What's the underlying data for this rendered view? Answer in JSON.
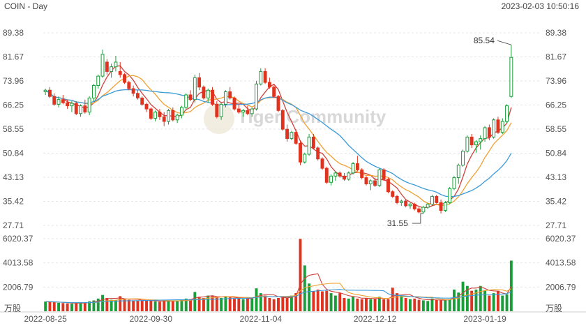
{
  "header": {
    "title": "COIN - Day",
    "timestamp": "2023-02-03 10:50:16"
  },
  "watermark": "Tiger Community",
  "colors": {
    "up": "#1a9e3a",
    "down": "#e0331f",
    "ma5": "#d0403a",
    "ma10": "#f0a030",
    "ma20": "#3a9ad8",
    "vol_ma_a": "#d0403a",
    "vol_ma_b": "#f0a030",
    "vol_ma_c": "#3a9ad8",
    "grid": "#e6e6e6"
  },
  "chart_data": {
    "type": "candlestick",
    "price_axis": {
      "ticks": [
        "89.38",
        "81.67",
        "73.96",
        "66.25",
        "58.55",
        "50.84",
        "43.13",
        "35.42",
        "27.71"
      ],
      "range": [
        27.71,
        89.38
      ]
    },
    "volume_axis": {
      "ticks": [
        "6020.37",
        "4013.58",
        "2006.79"
      ],
      "unit": "万股",
      "range": [
        0,
        6020.37
      ]
    },
    "x_ticks": [
      "2022-08-25",
      "2022-09-30",
      "2022-11-04",
      "2022-12-12",
      "2023-01-19"
    ],
    "annotations": {
      "high": "85.54",
      "low": "31.55"
    },
    "candles": [
      [
        70.5,
        71.5,
        69.5,
        71.0
      ],
      [
        71.0,
        72.0,
        68.5,
        69.0
      ],
      [
        69.0,
        70.0,
        66.0,
        66.5
      ],
      [
        66.5,
        69.0,
        65.5,
        68.0
      ],
      [
        68.0,
        69.5,
        66.5,
        67.0
      ],
      [
        67.0,
        68.0,
        65.0,
        66.0
      ],
      [
        66.0,
        67.5,
        64.0,
        66.8
      ],
      [
        66.8,
        67.5,
        63.0,
        63.5
      ],
      [
        63.5,
        66.5,
        62.5,
        66.0
      ],
      [
        66.0,
        68.0,
        63.5,
        64.0
      ],
      [
        64.0,
        69.0,
        63.0,
        68.5
      ],
      [
        68.5,
        73.0,
        67.5,
        72.5
      ],
      [
        72.5,
        76.0,
        71.5,
        75.5
      ],
      [
        75.5,
        84.0,
        75.0,
        82.5
      ],
      [
        80.0,
        81.0,
        76.0,
        77.0
      ],
      [
        77.0,
        79.5,
        75.0,
        78.5
      ],
      [
        78.5,
        82.0,
        77.0,
        80.0
      ],
      [
        77.0,
        80.0,
        75.0,
        76.0
      ],
      [
        76.0,
        76.5,
        73.0,
        73.5
      ],
      [
        73.5,
        74.0,
        71.0,
        71.5
      ],
      [
        71.5,
        72.5,
        69.0,
        70.0
      ],
      [
        70.0,
        71.0,
        68.0,
        68.5
      ],
      [
        68.5,
        69.0,
        66.0,
        66.5
      ],
      [
        66.5,
        67.0,
        64.0,
        65.0
      ],
      [
        65.0,
        65.5,
        61.5,
        62.0
      ],
      [
        62.0,
        64.5,
        61.0,
        64.0
      ],
      [
        64.0,
        65.0,
        61.5,
        62.5
      ],
      [
        62.5,
        64.0,
        59.5,
        61.0
      ],
      [
        61.0,
        65.0,
        60.0,
        64.5
      ],
      [
        64.5,
        65.5,
        61.0,
        61.5
      ],
      [
        61.5,
        63.5,
        60.5,
        63.0
      ],
      [
        63.0,
        66.0,
        62.0,
        65.5
      ],
      [
        65.5,
        70.0,
        65.0,
        69.5
      ],
      [
        69.5,
        71.0,
        67.5,
        68.0
      ],
      [
        68.0,
        76.0,
        67.0,
        75.0
      ],
      [
        75.0,
        76.5,
        71.0,
        72.0
      ],
      [
        72.0,
        72.5,
        68.0,
        68.5
      ],
      [
        68.5,
        71.5,
        67.0,
        71.0
      ],
      [
        71.0,
        72.0,
        66.0,
        66.5
      ],
      [
        66.5,
        67.5,
        62.0,
        62.5
      ],
      [
        62.5,
        67.0,
        61.5,
        66.5
      ],
      [
        66.5,
        71.0,
        65.5,
        70.5
      ],
      [
        70.5,
        72.0,
        68.0,
        68.5
      ],
      [
        68.5,
        69.0,
        64.5,
        65.0
      ],
      [
        65.0,
        66.5,
        63.5,
        64.0
      ],
      [
        64.0,
        65.0,
        62.5,
        64.5
      ],
      [
        64.5,
        66.0,
        63.0,
        63.5
      ],
      [
        63.5,
        65.5,
        62.5,
        65.0
      ],
      [
        65.0,
        74.0,
        64.5,
        73.0
      ],
      [
        73.0,
        78.0,
        72.5,
        77.0
      ],
      [
        77.0,
        78.0,
        73.0,
        73.5
      ],
      [
        73.5,
        75.0,
        71.5,
        72.0
      ],
      [
        72.0,
        72.5,
        68.5,
        69.0
      ],
      [
        69.0,
        69.5,
        64.0,
        64.5
      ],
      [
        64.5,
        65.0,
        58.0,
        58.5
      ],
      [
        58.5,
        60.0,
        54.5,
        55.5
      ],
      [
        55.5,
        58.0,
        55.0,
        57.5
      ],
      [
        57.5,
        58.5,
        53.5,
        54.0
      ],
      [
        54.0,
        55.0,
        47.0,
        48.0
      ],
      [
        48.0,
        51.0,
        47.5,
        50.5
      ],
      [
        50.5,
        57.0,
        50.0,
        56.0
      ],
      [
        56.0,
        57.0,
        52.0,
        52.5
      ],
      [
        52.5,
        53.0,
        48.5,
        49.0
      ],
      [
        49.0,
        49.5,
        45.5,
        46.0
      ],
      [
        46.0,
        46.5,
        41.0,
        41.5
      ],
      [
        41.5,
        44.0,
        40.5,
        43.5
      ],
      [
        43.5,
        45.0,
        42.0,
        44.5
      ],
      [
        44.5,
        45.0,
        43.0,
        43.5
      ],
      [
        43.5,
        44.5,
        42.0,
        42.5
      ],
      [
        42.5,
        45.0,
        42.0,
        44.5
      ],
      [
        44.5,
        48.0,
        44.0,
        47.5
      ],
      [
        47.5,
        50.0,
        45.0,
        45.5
      ],
      [
        45.5,
        46.0,
        42.5,
        43.0
      ],
      [
        43.0,
        43.5,
        40.5,
        41.0
      ],
      [
        41.0,
        42.5,
        39.0,
        42.0
      ],
      [
        42.0,
        43.0,
        40.0,
        40.5
      ],
      [
        40.5,
        46.0,
        40.0,
        45.5
      ],
      [
        45.5,
        46.0,
        42.0,
        42.5
      ],
      [
        42.5,
        43.0,
        38.0,
        38.5
      ],
      [
        38.5,
        39.0,
        36.5,
        37.0
      ],
      [
        37.0,
        37.5,
        34.5,
        35.0
      ],
      [
        35.0,
        36.0,
        34.0,
        35.5
      ],
      [
        35.5,
        36.0,
        33.5,
        34.0
      ],
      [
        34.0,
        35.0,
        33.0,
        34.5
      ],
      [
        34.5,
        35.0,
        32.5,
        33.0
      ],
      [
        33.0,
        33.5,
        31.6,
        32.0
      ],
      [
        32.0,
        34.0,
        31.5,
        33.5
      ],
      [
        33.5,
        35.0,
        33.0,
        34.5
      ],
      [
        34.5,
        37.5,
        34.0,
        37.0
      ],
      [
        37.0,
        37.5,
        34.5,
        35.0
      ],
      [
        35.0,
        36.0,
        31.55,
        32.5
      ],
      [
        32.5,
        35.5,
        32.0,
        35.0
      ],
      [
        35.0,
        40.0,
        34.5,
        39.5
      ],
      [
        39.5,
        43.5,
        39.0,
        43.0
      ],
      [
        43.0,
        47.5,
        41.0,
        47.0
      ],
      [
        47.0,
        52.0,
        46.5,
        51.5
      ],
      [
        51.5,
        56.5,
        51.0,
        56.0
      ],
      [
        56.0,
        57.0,
        52.5,
        53.5
      ],
      [
        53.5,
        55.0,
        51.0,
        54.5
      ],
      [
        54.5,
        56.5,
        52.0,
        55.5
      ],
      [
        55.5,
        59.5,
        54.5,
        59.0
      ],
      [
        59.0,
        60.0,
        55.0,
        56.0
      ],
      [
        56.0,
        62.0,
        55.5,
        61.5
      ],
      [
        61.5,
        62.5,
        57.0,
        57.5
      ],
      [
        57.5,
        62.0,
        57.0,
        61.0
      ],
      [
        61.0,
        66.5,
        60.5,
        66.0
      ],
      [
        69.0,
        85.54,
        68.5,
        81.5
      ]
    ],
    "volumes": [
      800,
      780,
      760,
      700,
      680,
      650,
      640,
      700,
      690,
      720,
      820,
      900,
      1050,
      1350,
      1100,
      950,
      900,
      1250,
      1000,
      950,
      900,
      880,
      870,
      900,
      880,
      820,
      800,
      840,
      880,
      860,
      900,
      950,
      1050,
      1000,
      1600,
      1200,
      1100,
      1300,
      1250,
      1200,
      1100,
      1250,
      1150,
      1050,
      1050,
      1000,
      1100,
      1050,
      1900,
      1500,
      1300,
      1100,
      1000,
      1100,
      1250,
      1100,
      1300,
      1500,
      6000,
      3800,
      2300,
      1650,
      1800,
      1650,
      1700,
      1500,
      1300,
      1500,
      1100,
      1050,
      1200,
      1050,
      1000,
      1100,
      1000,
      1050,
      1200,
      1000,
      1000,
      1950,
      1500,
      1300,
      1100,
      1000,
      1050,
      950,
      900,
      850,
      1050,
      950,
      900,
      900,
      1000,
      1800,
      1550,
      2450,
      2100,
      1700,
      1800,
      2100,
      1750,
      1300,
      1500,
      1700,
      1300,
      1400,
      4200
    ]
  }
}
